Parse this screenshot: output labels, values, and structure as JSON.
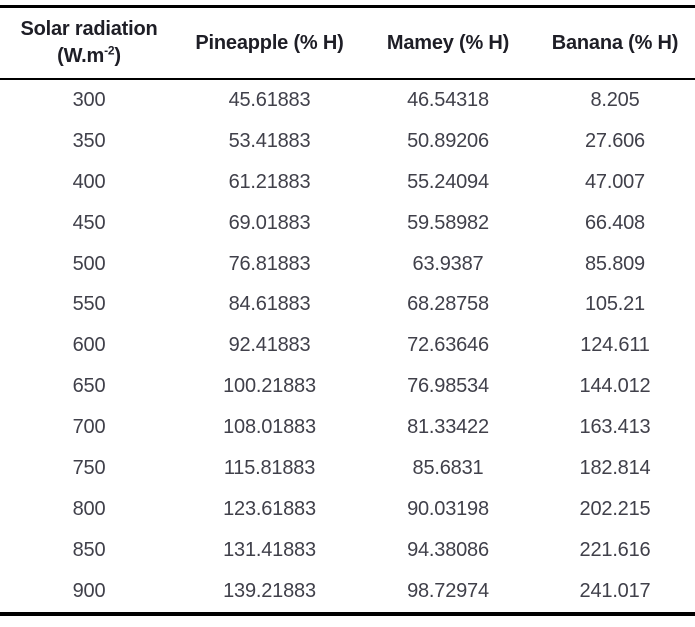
{
  "colors": {
    "background": "#ffffff",
    "rule_color": "#000000",
    "header_text_color": "#1e1e26",
    "body_text_color": "#40404a"
  },
  "table": {
    "header": {
      "col1_line1": "Solar radiation",
      "col1_unit_pre": "(W.m",
      "col1_unit_sup": "-2",
      "col1_unit_post": ")",
      "col2": "Pineapple (% H)",
      "col3": "Mamey (% H)",
      "col4": "Banana (% H)"
    },
    "rows": [
      [
        "300",
        "45.61883",
        "46.54318",
        "8.205"
      ],
      [
        "350",
        "53.41883",
        "50.89206",
        "27.606"
      ],
      [
        "400",
        "61.21883",
        "55.24094",
        "47.007"
      ],
      [
        "450",
        "69.01883",
        "59.58982",
        "66.408"
      ],
      [
        "500",
        "76.81883",
        "63.9387",
        "85.809"
      ],
      [
        "550",
        "84.61883",
        "68.28758",
        "105.21"
      ],
      [
        "600",
        "92.41883",
        "72.63646",
        "124.611"
      ],
      [
        "650",
        "100.21883",
        "76.98534",
        "144.012"
      ],
      [
        "700",
        "108.01883",
        "81.33422",
        "163.413"
      ],
      [
        "750",
        "115.81883",
        "85.6831",
        "182.814"
      ],
      [
        "800",
        "123.61883",
        "90.03198",
        "202.215"
      ],
      [
        "850",
        "131.41883",
        "94.38086",
        "221.616"
      ],
      [
        "900",
        "139.21883",
        "98.72974",
        "241.017"
      ]
    ]
  }
}
